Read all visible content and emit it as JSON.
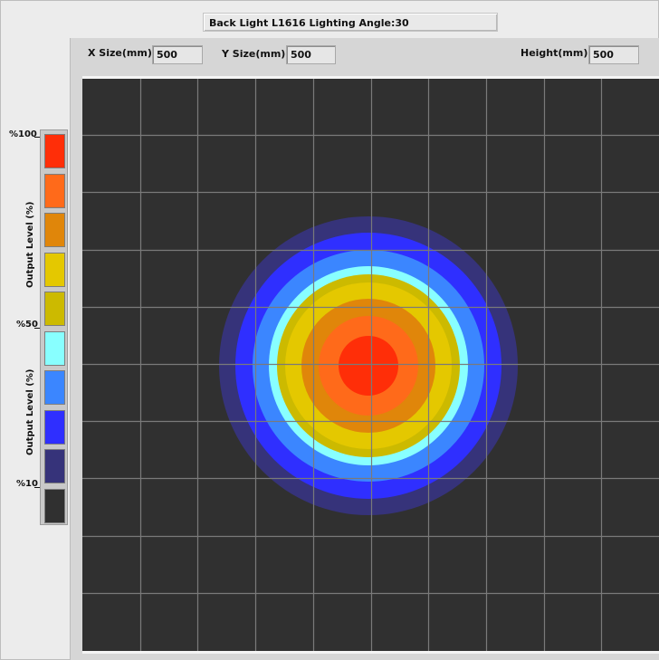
{
  "title": "Back Light L1616 Lighting Angle:30",
  "fields": {
    "x_size_label": "X Size(mm)",
    "x_size_value": "500",
    "y_size_label": "Y Size(mm)",
    "y_size_value": "500",
    "height_label": "Height(mm)",
    "height_value": "500"
  },
  "legend": {
    "label_100": "%100",
    "label_50": "%50",
    "label_10": "%10",
    "axis_label_upper": "Output Level (%)",
    "axis_label_lower": "Output Level (%)",
    "colors": [
      "#ff2e08",
      "#ff6a1a",
      "#e0860a",
      "#e4c800",
      "#ccba00",
      "#88ffff",
      "#3b86ff",
      "#2f2fff",
      "#36337a",
      "#303030"
    ]
  },
  "plot": {
    "grid_cols": 10,
    "grid_rows": 10,
    "background": "#303030",
    "grid_color": "#7a7a7a",
    "ring_colors": [
      "#36337a",
      "#2f2fff",
      "#3b86ff",
      "#88ffff",
      "#ccba00",
      "#e4c800",
      "#e0860a",
      "#ff6a1a",
      "#ff2e08"
    ],
    "ring_levels": [
      0.1,
      0.2,
      0.3,
      0.4,
      0.5,
      0.6,
      0.7,
      0.8,
      0.9
    ]
  }
}
